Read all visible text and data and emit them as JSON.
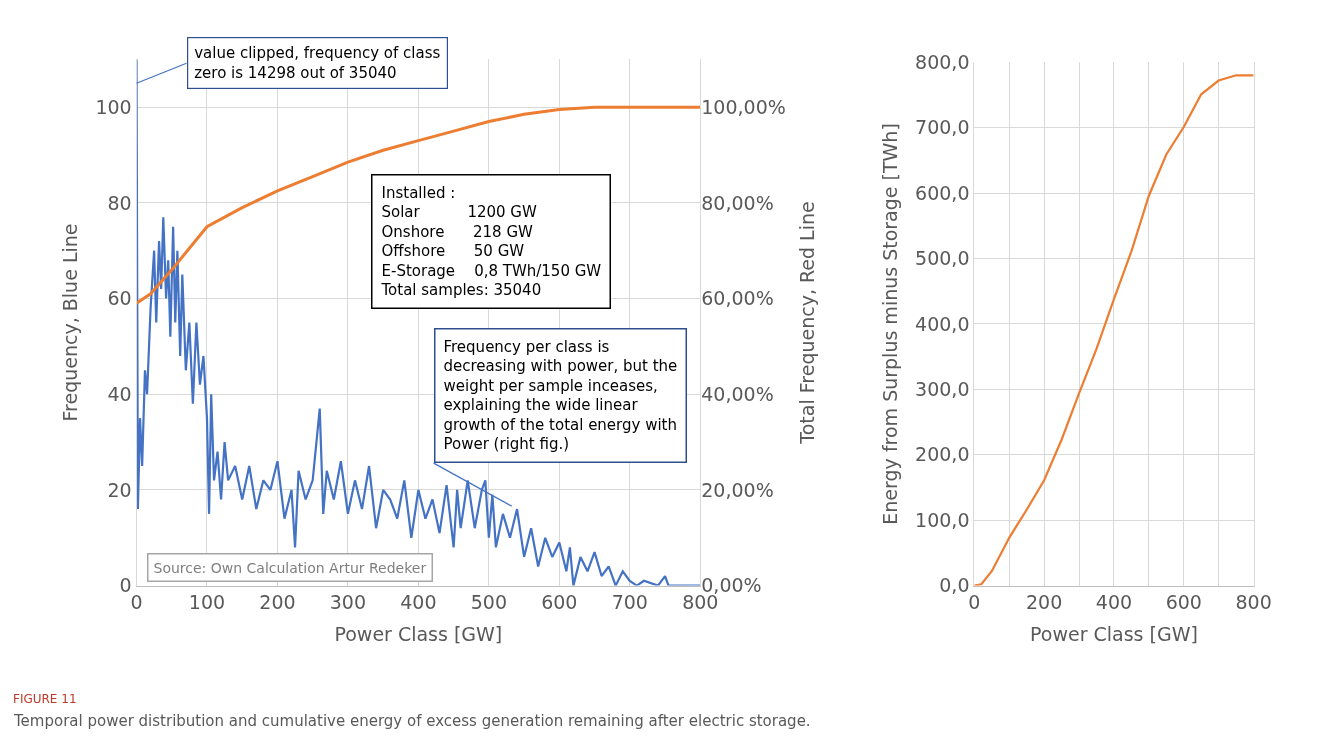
{
  "chart_data": [
    {
      "type": "line",
      "xlabel": "Power Class [GW]",
      "ylabel": "Frequency, Blue Line",
      "y2label": "Total Frequency, Red Line",
      "xlim": [
        0,
        800
      ],
      "xticks": [
        0,
        100,
        200,
        300,
        400,
        500,
        600,
        700,
        800
      ],
      "ylim": [
        0,
        110
      ],
      "yticks": [
        0,
        20,
        40,
        60,
        80,
        100
      ],
      "y2lim": [
        0,
        110
      ],
      "y2ticks": [
        {
          "value": 0,
          "label": "0,00%"
        },
        {
          "value": 20,
          "label": "20,00%"
        },
        {
          "value": 40,
          "label": "40,00%"
        },
        {
          "value": 60,
          "label": "60,00%"
        },
        {
          "value": 80,
          "label": "80,00%"
        },
        {
          "value": 100,
          "label": "100,00%"
        }
      ],
      "grid": true,
      "marker": "none",
      "line_style": "solid",
      "series": [
        {
          "color": "#4472c4",
          "x": [
            0,
            2,
            5,
            8,
            12,
            15,
            20,
            25,
            28,
            32,
            35,
            38,
            42,
            45,
            48,
            52,
            55,
            58,
            62,
            65,
            70,
            75,
            80,
            85,
            90,
            95,
            100,
            103,
            106,
            110,
            115,
            120,
            125,
            130,
            140,
            150,
            160,
            170,
            180,
            190,
            200,
            210,
            220,
            225,
            230,
            240,
            250,
            260,
            265,
            270,
            280,
            290,
            300,
            310,
            320,
            330,
            340,
            350,
            360,
            370,
            380,
            390,
            400,
            410,
            420,
            430,
            440,
            450,
            455,
            460,
            470,
            480,
            490,
            495,
            500,
            505,
            510,
            520,
            530,
            540,
            550,
            560,
            570,
            580,
            590,
            600,
            610,
            615,
            620,
            630,
            640,
            650,
            660,
            670,
            680,
            690,
            700,
            710,
            720,
            740,
            750,
            755,
            760,
            800
          ],
          "values": [
            110,
            16,
            35,
            25,
            45,
            40,
            58,
            70,
            55,
            72,
            62,
            77,
            60,
            68,
            52,
            75,
            55,
            70,
            48,
            65,
            45,
            55,
            38,
            55,
            42,
            48,
            35,
            15,
            40,
            22,
            28,
            18,
            30,
            22,
            25,
            18,
            25,
            16,
            22,
            20,
            26,
            14,
            20,
            8,
            24,
            18,
            22,
            37,
            15,
            24,
            18,
            26,
            15,
            22,
            16,
            25,
            12,
            20,
            18,
            14,
            22,
            10,
            20,
            14,
            18,
            11,
            21,
            8,
            20,
            12,
            22,
            12,
            20,
            22,
            10,
            19,
            8,
            15,
            10,
            16,
            6,
            12,
            4,
            10,
            6,
            9,
            3,
            8,
            0,
            6,
            3,
            7,
            2,
            4,
            0,
            3,
            1,
            0,
            1,
            0,
            2,
            0,
            0,
            0
          ]
        },
        {
          "color": "#ed7d31",
          "axis": "y2",
          "x": [
            0,
            20,
            50,
            100,
            150,
            200,
            250,
            300,
            350,
            400,
            450,
            500,
            550,
            600,
            650,
            700,
            800
          ],
          "values": [
            59,
            61,
            66,
            75,
            79,
            82.5,
            85.5,
            88.5,
            91,
            93,
            95,
            97,
            98.5,
            99.5,
            100,
            100,
            100
          ]
        }
      ],
      "annotations": [
        {
          "text": "value clipped, frequency of class\nzero is 14298 out of 35040",
          "x": 0,
          "y": 105
        },
        "Installed :\nSolar          1200 GW\nOnshore      218 GW\nOffshore      50 GW\nE-Storage    0,8 TWh/150 GW\nTotal samples: 35040",
        "Frequency per class is\ndecreasing with power, but the\nweight per sample inceases,\nexplaining the wide linear\ngrowth of the total energy with\nPower (right fig.)",
        "Source: Own Calculation Artur Redeker",
        "FIGURE 11",
        "Temporal power distribution and cumulative energy of excess generation remaining after electric storage."
      ]
    },
    {
      "type": "line",
      "xlabel": "Power Class [GW]",
      "ylabel": "Energy from Surplus minus Storage [TWh]",
      "xlim": [
        0,
        800
      ],
      "xticks": [
        0,
        {
          "value": 100,
          "label": null
        },
        200,
        {
          "value": 300,
          "label": null
        },
        400,
        {
          "value": 500,
          "label": null
        },
        600,
        {
          "value": 700,
          "label": null
        },
        800
      ],
      "ylim": [
        0,
        800
      ],
      "yticks": [
        {
          "value": 0,
          "label": "0,0"
        },
        {
          "value": 100,
          "label": "100,0"
        },
        {
          "value": 200,
          "label": "200,0"
        },
        {
          "value": 300,
          "label": "300,0"
        },
        {
          "value": 400,
          "label": "400,0"
        },
        {
          "value": 500,
          "label": "500,0"
        },
        {
          "value": 600,
          "label": "600,0"
        },
        {
          "value": 700,
          "label": "700,0"
        },
        {
          "value": 800,
          "label": "800,0"
        }
      ],
      "grid": true,
      "marker": "none",
      "line_style": "solid",
      "series": [
        {
          "color": "#ed7d31",
          "x": [
            0,
            20,
            50,
            100,
            150,
            200,
            250,
            300,
            350,
            400,
            450,
            500,
            550,
            600,
            650,
            700,
            750,
            800
          ],
          "values": [
            0,
            2,
            22,
            73,
            116,
            161,
            223,
            294,
            362,
            438,
            511,
            596,
            659,
            701,
            751,
            772,
            780,
            780
          ]
        }
      ]
    }
  ]
}
